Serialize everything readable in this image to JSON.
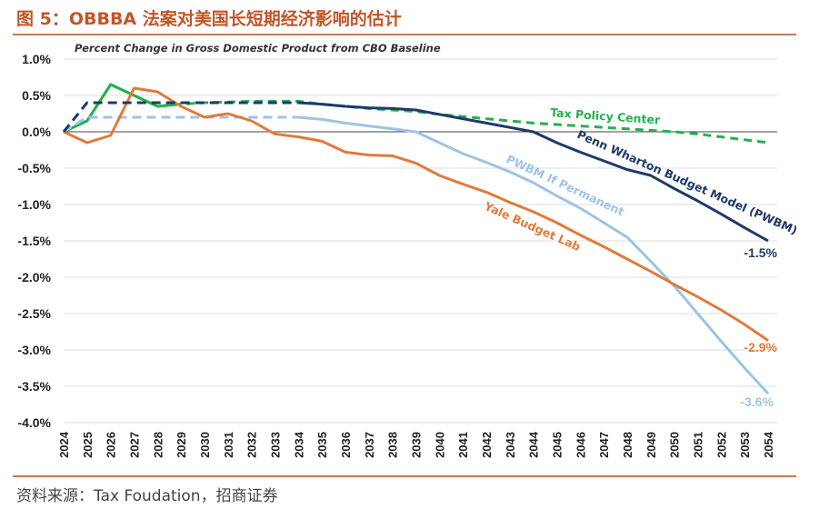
{
  "figure": {
    "title": "图 5：OBBBA 法案对美国长短期经济影响的估计",
    "source": "资料来源：Tax Foudation，招商证券"
  },
  "chart_data": {
    "type": "line",
    "title": "Percent Change in Gross Domestic Product from CBO Baseline",
    "xlabel": "",
    "ylabel": "",
    "ylim": [
      -4.0,
      1.0
    ],
    "yticks": [
      "1.0%",
      "0.5%",
      "0.0%",
      "-0.5%",
      "-1.0%",
      "-1.5%",
      "-2.0%",
      "-2.5%",
      "-3.0%",
      "-3.5%",
      "-4.0%"
    ],
    "categories": [
      "2024",
      "2025",
      "2026",
      "2027",
      "2028",
      "2029",
      "2030",
      "2031",
      "2032",
      "2033",
      "2034",
      "2035",
      "2036",
      "2037",
      "2038",
      "2039",
      "2040",
      "2041",
      "2042",
      "2043",
      "2044",
      "2045",
      "2046",
      "2047",
      "2048",
      "2049",
      "2050",
      "2051",
      "2052",
      "2053",
      "2054"
    ],
    "grid": true,
    "series": [
      {
        "name": "Tax Policy Center",
        "color": "#22b24c",
        "style": "dashed",
        "values": [
          0.0,
          0.15,
          0.65,
          0.5,
          0.35,
          0.38,
          0.4,
          0.41,
          0.42,
          0.42,
          0.42,
          0.38,
          0.35,
          0.32,
          0.3,
          0.28,
          0.24,
          0.21,
          0.18,
          0.15,
          0.12,
          0.1,
          0.08,
          0.06,
          0.04,
          0.02,
          0.0,
          -0.03,
          -0.07,
          -0.11,
          -0.15
        ]
      },
      {
        "name": "Penn Wharton Budget Model (PWBM)",
        "color": "#1f3a68",
        "style": "dashed-then-solid",
        "values": [
          0.0,
          0.4,
          0.4,
          0.4,
          0.4,
          0.4,
          0.4,
          0.4,
          0.4,
          0.4,
          0.4,
          0.38,
          0.35,
          0.33,
          0.32,
          0.3,
          0.24,
          0.18,
          0.12,
          0.06,
          0.0,
          -0.15,
          -0.28,
          -0.4,
          -0.52,
          -0.6,
          -0.78,
          -0.95,
          -1.13,
          -1.32,
          -1.5
        ]
      },
      {
        "name": "PWBM If Permanent",
        "color": "#9dc3e6",
        "style": "dashed-then-solid",
        "values": [
          0.0,
          0.2,
          0.2,
          0.2,
          0.2,
          0.2,
          0.2,
          0.2,
          0.2,
          0.2,
          0.2,
          0.17,
          0.12,
          0.08,
          0.04,
          0.0,
          -0.15,
          -0.3,
          -0.42,
          -0.55,
          -0.7,
          -0.88,
          -1.05,
          -1.25,
          -1.45,
          -1.78,
          -2.12,
          -2.5,
          -2.88,
          -3.25,
          -3.6
        ]
      },
      {
        "name": "Yale Budget Lab",
        "color": "#e07b39",
        "style": "solid",
        "values": [
          0.0,
          -0.15,
          -0.05,
          0.6,
          0.55,
          0.35,
          0.2,
          0.25,
          0.15,
          -0.03,
          -0.07,
          -0.13,
          -0.28,
          -0.32,
          -0.33,
          -0.43,
          -0.6,
          -0.72,
          -0.83,
          -0.97,
          -1.1,
          -1.25,
          -1.42,
          -1.58,
          -1.75,
          -1.92,
          -2.1,
          -2.27,
          -2.45,
          -2.65,
          -2.87
        ]
      }
    ],
    "end_labels": [
      {
        "series": "Penn Wharton Budget Model (PWBM)",
        "text": "-1.5%",
        "value": -1.5
      },
      {
        "series": "Yale Budget Lab",
        "text": "-2.9%",
        "value": -2.9
      },
      {
        "series": "PWBM If Permanent",
        "text": "-3.6%",
        "value": -3.6
      }
    ]
  }
}
